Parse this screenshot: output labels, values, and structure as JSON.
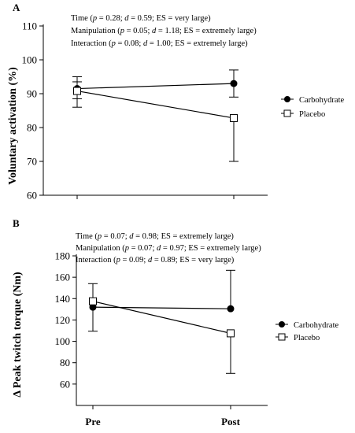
{
  "chart_data": [
    {
      "type": "line",
      "panel": "A",
      "ylabel": "Voluntary activation (%)",
      "ylim": [
        60,
        110
      ],
      "yticks": [
        60,
        70,
        80,
        90,
        100,
        110
      ],
      "categories": [
        "Pre",
        "Post"
      ],
      "annotations": [
        {
          "label": "Time",
          "p": "0.28",
          "d": "0.59",
          "es": "very large"
        },
        {
          "label": "Manipulation",
          "p": "0.05",
          "d": "1.18",
          "es": "extremely large"
        },
        {
          "label": "Interaction",
          "p": "0.08",
          "d": "1.00",
          "es": "extremely large"
        }
      ],
      "series": [
        {
          "name": "Carbohydrate",
          "marker": "filled-circle",
          "values": [
            91.5,
            93.0
          ],
          "err_low": [
            88.5,
            89.0
          ],
          "err_high": [
            95.0,
            97.0
          ]
        },
        {
          "name": "Placebo",
          "marker": "open-square",
          "values": [
            90.8,
            82.8
          ],
          "err_low": [
            86.0,
            70.0
          ],
          "err_high": [
            93.5,
            82.8
          ]
        }
      ],
      "legend_position": "right"
    },
    {
      "type": "line",
      "panel": "B",
      "ylabel": "Δ Peak twitch torque (Nm)",
      "ylim": [
        40,
        180
      ],
      "yticks": [
        60,
        80,
        100,
        120,
        140,
        160,
        180
      ],
      "categories": [
        "Pre",
        "Post"
      ],
      "annotations": [
        {
          "label": "Time",
          "p": "0.07",
          "d": "0.98",
          "es": "extremely large"
        },
        {
          "label": "Manipulation",
          "p": "0.07",
          "d": "0.97",
          "es": "extremely large"
        },
        {
          "label": "Interaction",
          "p": "0.09",
          "d": "0.89",
          "es": "very large"
        }
      ],
      "series": [
        {
          "name": "Carbohydrate",
          "marker": "filled-circle",
          "values": [
            132.0,
            130.5
          ],
          "err_low": [
            109.5,
            130.5
          ],
          "err_high": [
            132.0,
            166.5
          ]
        },
        {
          "name": "Placebo",
          "marker": "open-square",
          "values": [
            137.5,
            107.5
          ],
          "err_low": [
            137.5,
            70.0
          ],
          "err_high": [
            154.0,
            107.5
          ]
        }
      ],
      "legend_position": "right"
    }
  ]
}
